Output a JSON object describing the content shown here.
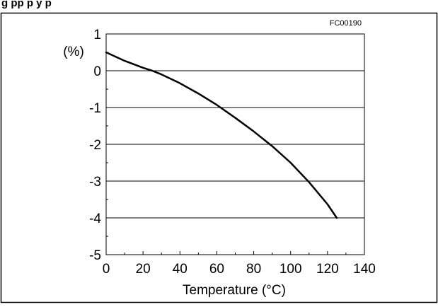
{
  "header_fragment": "g        pp     p y p",
  "chart_data": {
    "type": "line",
    "figure_code": "FC00190",
    "title": "",
    "xlabel": "Temperature (°C)",
    "ylabel": "(%)",
    "xlim": [
      0,
      140
    ],
    "ylim": [
      -5,
      1
    ],
    "x_ticks": [
      0,
      20,
      40,
      60,
      80,
      100,
      120,
      140
    ],
    "y_ticks": [
      1,
      0,
      -1,
      -2,
      -3,
      -4,
      -5
    ],
    "grid": "horizontal",
    "x_minor_ticks_per_interval": 2,
    "y_minor_ticks_per_interval": 2,
    "series": [
      {
        "color": "#000000",
        "x": [
          0,
          10,
          20,
          25,
          30,
          40,
          50,
          60,
          70,
          80,
          90,
          100,
          110,
          120,
          125
        ],
        "y": [
          0.5,
          0.27,
          0.08,
          0.0,
          -0.1,
          -0.34,
          -0.62,
          -0.93,
          -1.28,
          -1.65,
          -2.05,
          -2.5,
          -3.03,
          -3.63,
          -4.0
        ]
      }
    ]
  }
}
